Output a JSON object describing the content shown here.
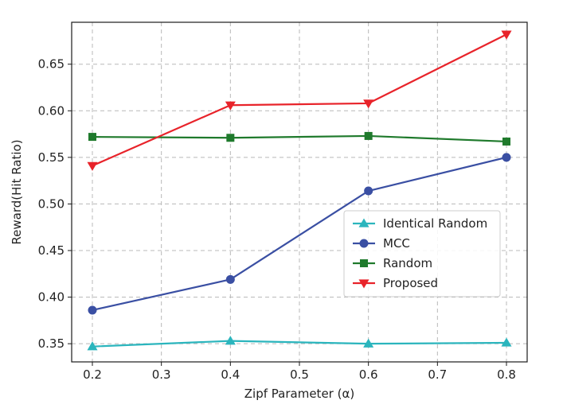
{
  "chart_data": {
    "type": "line",
    "title": "",
    "xlabel": "Zipf Parameter (α)",
    "ylabel": "Reward(Hit Ratio)",
    "xlim": [
      0.17,
      0.83
    ],
    "ylim": [
      0.3305,
      0.695
    ],
    "xticks": [
      0.2,
      0.3,
      0.4,
      0.5,
      0.6,
      0.7,
      0.8
    ],
    "xtick_labels": [
      "0.2",
      "0.3",
      "0.4",
      "0.5",
      "0.6",
      "0.7",
      "0.8"
    ],
    "yticks": [
      0.35,
      0.4,
      0.45,
      0.5,
      0.55,
      0.6,
      0.65
    ],
    "ytick_labels": [
      "0.35",
      "0.40",
      "0.45",
      "0.50",
      "0.55",
      "0.60",
      "0.65"
    ],
    "grid": true,
    "legend_position": "center-right",
    "x": [
      0.2,
      0.4,
      0.6,
      0.8
    ],
    "series": [
      {
        "name": "Identical Random",
        "color": "#2bb5bd",
        "marker": "triangle-up",
        "values": [
          0.347,
          0.353,
          0.35,
          0.351
        ]
      },
      {
        "name": "MCC",
        "color": "#3a4fa3",
        "marker": "circle",
        "values": [
          0.386,
          0.419,
          0.514,
          0.55
        ]
      },
      {
        "name": "Random",
        "color": "#1f7a2c",
        "marker": "square",
        "values": [
          0.572,
          0.571,
          0.573,
          0.567
        ]
      },
      {
        "name": "Proposed",
        "color": "#e8232a",
        "marker": "triangle-down",
        "values": [
          0.541,
          0.606,
          0.608,
          0.682
        ]
      }
    ]
  }
}
